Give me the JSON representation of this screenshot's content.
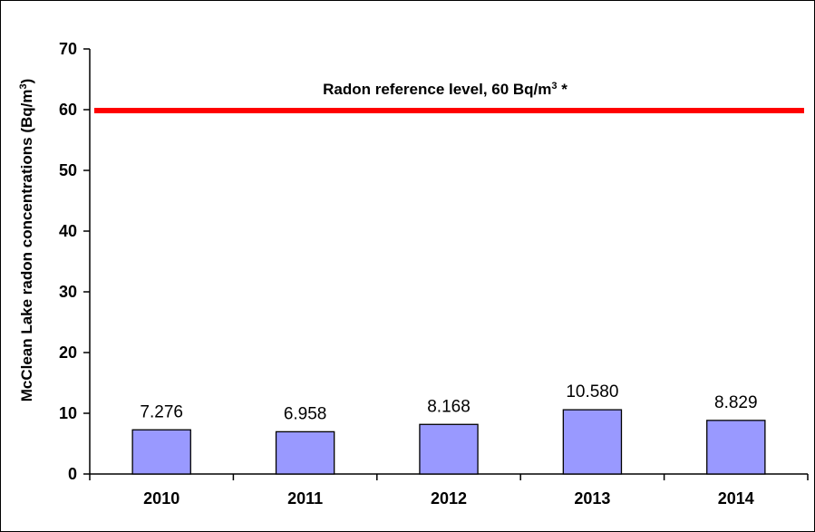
{
  "chart_data": {
    "type": "bar",
    "categories": [
      "2010",
      "2011",
      "2012",
      "2013",
      "2014"
    ],
    "values": [
      7.276,
      6.958,
      8.168,
      10.58,
      8.829
    ],
    "data_labels": [
      "7.276",
      "6.958",
      "8.168",
      "10.580",
      "8.829"
    ],
    "ylabel": "McClean Lake radon concentrations (Bq/m",
    "ylabel_sup": "3",
    "ylabel_end": ")",
    "ylim": [
      0,
      70
    ],
    "yticks": [
      0,
      10,
      20,
      30,
      40,
      50,
      60,
      70
    ],
    "grid": false,
    "legend": "none",
    "reference_line": {
      "value": 60,
      "label": "Radon reference level, 60 Bq/m",
      "label_sup": "3",
      "label_end": " *",
      "color": "#ff0000"
    },
    "bar_color": "#9999ff",
    "bar_edge_color": "#000000"
  }
}
